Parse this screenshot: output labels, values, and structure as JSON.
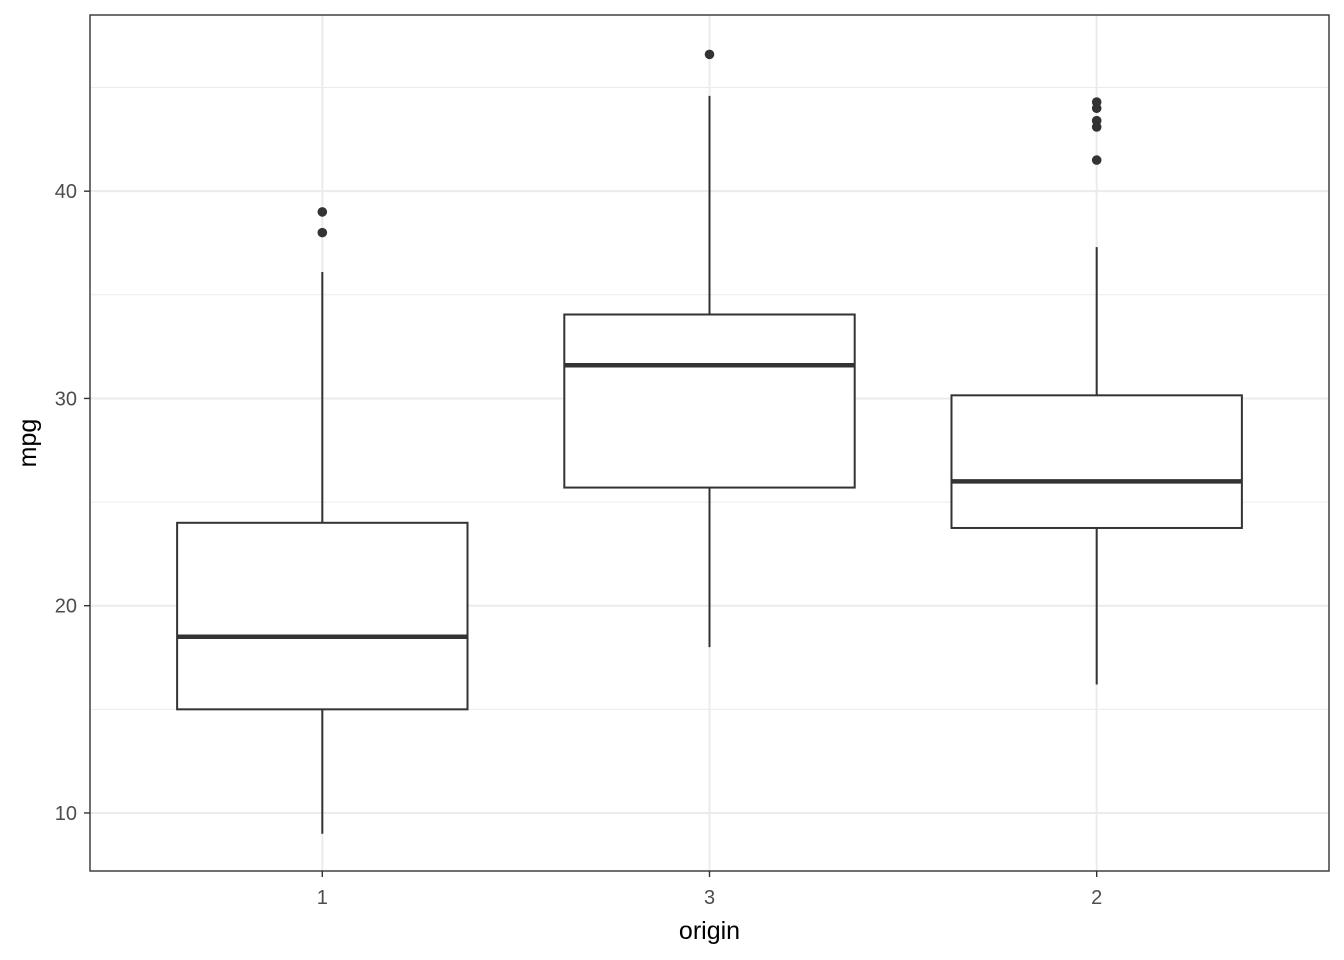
{
  "chart_data": {
    "type": "boxplot",
    "title": "",
    "xlabel": "origin",
    "ylabel": "mpg",
    "ylim": [
      7.2,
      48.5
    ],
    "grid": true,
    "y_major_ticks": [
      10,
      20,
      30,
      40
    ],
    "y_minor_ticks": [
      15,
      25,
      35,
      45
    ],
    "categories": [
      "1",
      "3",
      "2"
    ],
    "boxes": [
      {
        "category": "1",
        "lower_whisker": 9.0,
        "q1": 15.0,
        "median": 18.5,
        "q3": 24.0,
        "upper_whisker": 36.1,
        "outliers": [
          38.0,
          39.0
        ]
      },
      {
        "category": "3",
        "lower_whisker": 18.0,
        "q1": 25.7,
        "median": 31.6,
        "q3": 34.05,
        "upper_whisker": 44.6,
        "outliers": [
          46.6
        ]
      },
      {
        "category": "2",
        "lower_whisker": 16.2,
        "q1": 23.75,
        "median": 26.0,
        "q3": 30.15,
        "upper_whisker": 37.3,
        "outliers": [
          41.5,
          43.1,
          43.4,
          44.0,
          44.3
        ]
      }
    ],
    "colors": {
      "box_line": "#333333",
      "grid": "#ebebeb",
      "panel_border": "#333333",
      "tick_text": "#4d4d4d"
    }
  }
}
